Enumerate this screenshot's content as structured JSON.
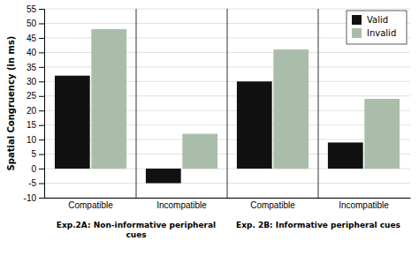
{
  "chart_data": {
    "type": "bar",
    "categories": [
      "Compatible",
      "Incompatible",
      "Compatible",
      "Incompatible"
    ],
    "series": [
      {
        "name": "Valid",
        "color": "#111111",
        "values": [
          32,
          -5,
          30,
          9
        ]
      },
      {
        "name": "Invalid",
        "color": "#aabdaa",
        "values": [
          48,
          12,
          41,
          24
        ]
      }
    ],
    "y_label": "Spatial Congruency (in ms)",
    "ylim": [
      -10,
      55
    ],
    "yticks": [
      55,
      50,
      45,
      40,
      35,
      30,
      25,
      20,
      15,
      10,
      5,
      0,
      -5,
      -10
    ],
    "grid": true,
    "legend": "upper right",
    "annotations": [
      "Exp.2A: Non-informative peripheral\ncues",
      "Exp. 2B: Informative peripheral cues"
    ]
  }
}
